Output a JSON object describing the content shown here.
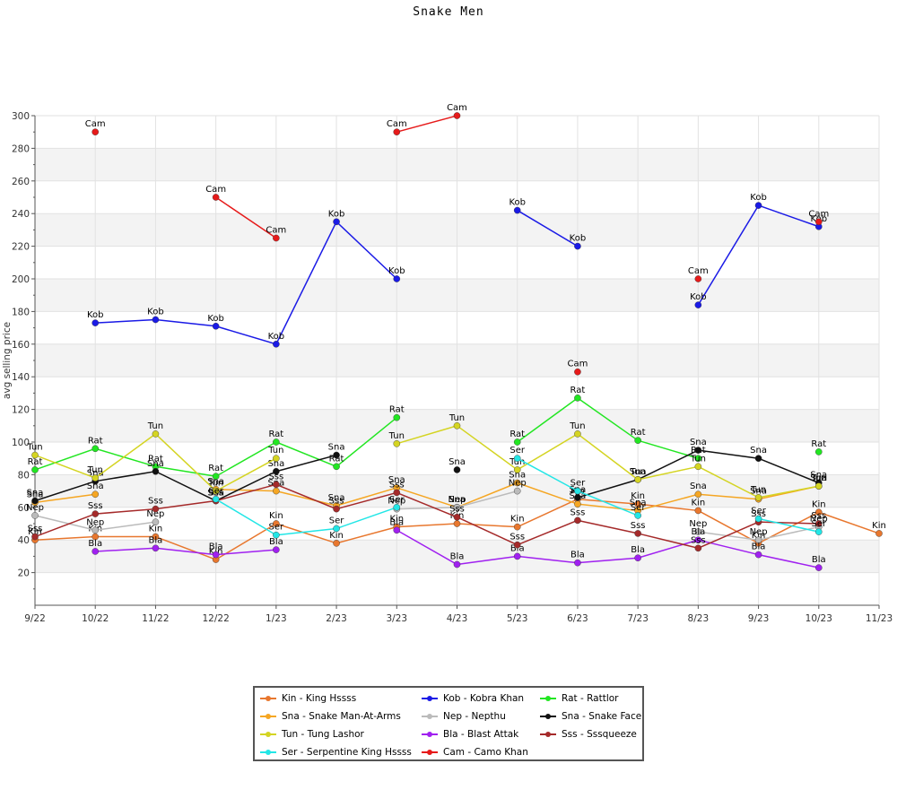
{
  "chart_data": {
    "type": "line",
    "title": "Snake Men",
    "xlabel": "",
    "ylabel": "avg selling price",
    "ylim": [
      0,
      300
    ],
    "yticks": [
      20,
      40,
      60,
      80,
      100,
      120,
      140,
      160,
      180,
      200,
      220,
      240,
      260,
      280,
      300
    ],
    "grid": true,
    "legend_position": "bottom",
    "categories": [
      "9/22",
      "10/22",
      "11/22",
      "12/22",
      "1/23",
      "2/23",
      "3/23",
      "4/23",
      "5/23",
      "6/23",
      "7/23",
      "8/23",
      "9/23",
      "10/23",
      "11/23"
    ],
    "series": [
      {
        "code": "Kin",
        "name": "Kin - King Hssss",
        "color": "#e8772e",
        "values": [
          40,
          42,
          42,
          28,
          50,
          38,
          48,
          50,
          48,
          65,
          62,
          58,
          38,
          57,
          44
        ]
      },
      {
        "code": "Kob",
        "name": "Kob - Kobra Khan",
        "color": "#1a1ae6",
        "values": [
          null,
          173,
          175,
          171,
          160,
          235,
          200,
          null,
          242,
          220,
          null,
          184,
          245,
          232,
          null
        ]
      },
      {
        "code": "Rat",
        "name": "Rat - Rattlor",
        "color": "#22e622",
        "values": [
          83,
          96,
          85,
          79,
          100,
          85,
          115,
          null,
          100,
          127,
          101,
          90,
          null,
          94,
          null
        ]
      },
      {
        "code": "Sna",
        "name": "Sna - Snake Man-At-Arms",
        "color": "#f5a623",
        "values": [
          63,
          68,
          null,
          71,
          70,
          61,
          72,
          60,
          75,
          62,
          58,
          68,
          65,
          73,
          null
        ]
      },
      {
        "code": "Nep",
        "name": "Nep - Nepthu",
        "color": "#bbbbbb",
        "values": [
          55,
          46,
          51,
          null,
          null,
          null,
          59,
          60,
          70,
          null,
          null,
          45,
          40,
          48,
          null
        ]
      },
      {
        "code": "Sna",
        "name": "Sna - Snake Face",
        "color": "#111111",
        "values": [
          64,
          76,
          82,
          64,
          82,
          92,
          null,
          83,
          null,
          66,
          77,
          95,
          90,
          75,
          null
        ]
      },
      {
        "code": "Tun",
        "name": "Tun - Tung Lashor",
        "color": "#d4d422",
        "values": [
          92,
          78,
          105,
          70,
          90,
          null,
          99,
          110,
          83,
          105,
          77,
          85,
          66,
          73,
          null
        ]
      },
      {
        "code": "Bla",
        "name": "Bla - Blast Attak",
        "color": "#a020f0",
        "values": [
          null,
          33,
          35,
          31,
          34,
          null,
          46,
          25,
          30,
          26,
          29,
          40,
          31,
          23,
          null
        ]
      },
      {
        "code": "Sss",
        "name": "Sss - Sssqueeze",
        "color": "#a52a2a",
        "values": [
          42,
          56,
          59,
          64,
          74,
          59,
          69,
          54,
          37,
          52,
          44,
          35,
          51,
          50,
          null
        ]
      },
      {
        "code": "Ser",
        "name": "Ser - Serpentine King Hssss",
        "color": "#22e6e6",
        "values": [
          null,
          null,
          null,
          65,
          43,
          47,
          60,
          null,
          90,
          70,
          55,
          null,
          53,
          45,
          null
        ]
      },
      {
        "code": "Cam",
        "name": "Cam - Camo Khan",
        "color": "#e61a1a",
        "values": [
          null,
          290,
          null,
          250,
          225,
          null,
          290,
          300,
          null,
          143,
          null,
          200,
          null,
          235,
          null
        ]
      }
    ]
  }
}
